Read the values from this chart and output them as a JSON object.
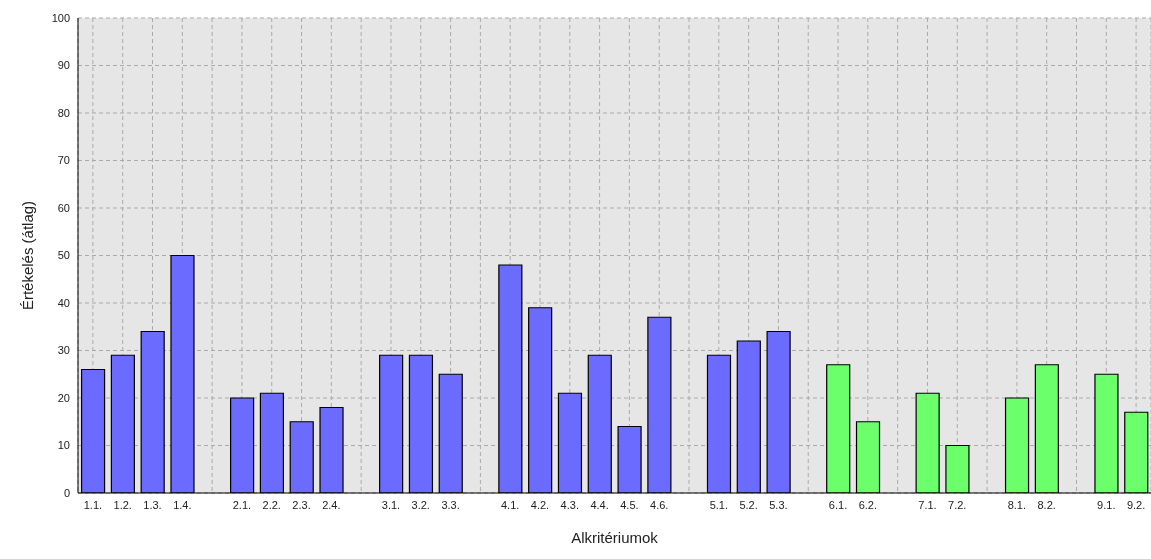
{
  "chart_data": {
    "type": "bar",
    "xlabel": "Alkritériumok",
    "ylabel": "Értékelés (átlag)",
    "categories": [
      "1.1.",
      "1.2.",
      "1.3.",
      "1.4.",
      null,
      "2.1.",
      "2.2.",
      "2.3.",
      "2.4.",
      null,
      "3.1.",
      "3.2.",
      "3.3.",
      null,
      "4.1.",
      "4.2.",
      "4.3.",
      "4.4.",
      "4.5.",
      "4.6.",
      null,
      "5.1.",
      "5.2.",
      "5.3.",
      null,
      "6.1.",
      "6.2.",
      null,
      "7.1.",
      "7.2.",
      null,
      "8.1.",
      "8.2.",
      null,
      "9.1.",
      "9.2."
    ],
    "values": [
      26,
      29,
      34,
      50,
      0,
      20,
      21,
      15,
      18,
      0,
      29,
      29,
      25,
      0,
      48,
      39,
      21,
      29,
      14,
      37,
      0,
      29,
      32,
      34,
      0,
      27,
      15,
      0,
      21,
      10,
      0,
      20,
      27,
      0,
      25,
      17
    ],
    "colors": [
      "#6b6bff",
      "#6b6bff",
      "#6b6bff",
      "#6b6bff",
      "#6b6bff",
      "#6b6bff",
      "#6b6bff",
      "#6b6bff",
      "#6b6bff",
      "#6b6bff",
      "#6b6bff",
      "#6b6bff",
      "#6b6bff",
      "#6b6bff",
      "#6b6bff",
      "#6b6bff",
      "#6b6bff",
      "#6b6bff",
      "#6b6bff",
      "#6b6bff",
      "#6b6bff",
      "#6b6bff",
      "#6b6bff",
      "#6b6bff",
      "#6bff6b",
      "#6bff6b",
      "#6bff6b",
      "#6bff6b",
      "#6bff6b",
      "#6bff6b",
      "#6bff6b",
      "#6bff6b",
      "#6bff6b",
      "#6bff6b",
      "#6bff6b",
      "#6bff6b"
    ],
    "ylim": [
      0,
      100
    ],
    "yticks": [
      0,
      10,
      20,
      30,
      40,
      50,
      60,
      70,
      80,
      90,
      100
    ],
    "grid": true
  }
}
